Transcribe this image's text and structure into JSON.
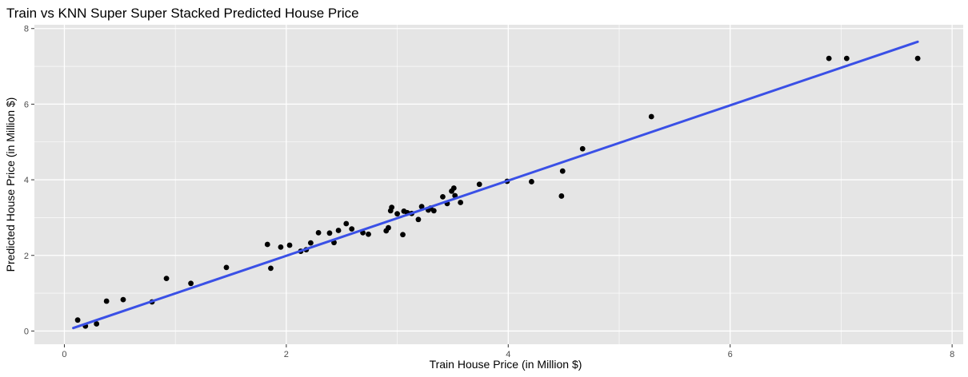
{
  "chart_data": {
    "type": "scatter",
    "title": "Train vs KNN Super Super Stacked Predicted House Price",
    "xlabel": "Train House Price (in Million $)",
    "ylabel": "Predicted House Price (in Million $)",
    "xlim": [
      -0.27,
      8.1
    ],
    "ylim": [
      -0.35,
      8.1
    ],
    "x_ticks": [
      "0",
      "2",
      "4",
      "6",
      "8"
    ],
    "y_ticks": [
      "0",
      "2",
      "4",
      "6",
      "8"
    ],
    "x_tick_values": [
      0,
      2,
      4,
      6,
      8
    ],
    "y_tick_values": [
      0,
      2,
      4,
      6,
      8
    ],
    "grid": true,
    "background_color": "#e5e5e5",
    "grid_color": "#ffffff",
    "point_color": "#000000",
    "line_color": "#3a50e6",
    "trend_line": {
      "x": [
        0.08,
        7.69
      ],
      "y": [
        0.08,
        7.65
      ]
    },
    "series": [
      {
        "points": [
          [
            6.89,
            7.21
          ],
          [
            7.05,
            7.21
          ],
          [
            7.69,
            7.21
          ],
          [
            5.29,
            5.67
          ],
          [
            4.67,
            4.82
          ],
          [
            4.49,
            4.23
          ],
          [
            4.48,
            3.57
          ],
          [
            4.21,
            3.95
          ],
          [
            3.99,
            3.96
          ],
          [
            3.74,
            3.88
          ],
          [
            3.57,
            3.4
          ],
          [
            3.52,
            3.58
          ],
          [
            3.51,
            3.78
          ],
          [
            3.49,
            3.7
          ],
          [
            3.45,
            3.37
          ],
          [
            3.41,
            3.55
          ],
          [
            3.33,
            3.18
          ],
          [
            3.3,
            3.25
          ],
          [
            3.28,
            3.2
          ],
          [
            3.22,
            3.29
          ],
          [
            3.19,
            2.95
          ],
          [
            3.13,
            3.11
          ],
          [
            3.09,
            3.13
          ],
          [
            3.06,
            3.17
          ],
          [
            3.05,
            2.55
          ],
          [
            3.0,
            3.1
          ],
          [
            2.95,
            3.27
          ],
          [
            2.94,
            3.18
          ],
          [
            2.92,
            2.73
          ],
          [
            2.9,
            2.65
          ],
          [
            2.74,
            2.56
          ],
          [
            2.69,
            2.6
          ],
          [
            2.59,
            2.7
          ],
          [
            2.54,
            2.84
          ],
          [
            2.47,
            2.66
          ],
          [
            2.43,
            2.34
          ],
          [
            2.39,
            2.59
          ],
          [
            2.29,
            2.6
          ],
          [
            2.22,
            2.33
          ],
          [
            2.18,
            2.15
          ],
          [
            2.13,
            2.11
          ],
          [
            2.03,
            2.27
          ],
          [
            1.95,
            2.22
          ],
          [
            1.86,
            1.66
          ],
          [
            1.83,
            2.29
          ],
          [
            1.46,
            1.68
          ],
          [
            1.14,
            1.26
          ],
          [
            0.92,
            1.39
          ],
          [
            0.79,
            0.77
          ],
          [
            0.53,
            0.83
          ],
          [
            0.38,
            0.79
          ],
          [
            0.19,
            0.13
          ],
          [
            0.12,
            0.29
          ],
          [
            0.29,
            0.19
          ]
        ]
      }
    ]
  }
}
